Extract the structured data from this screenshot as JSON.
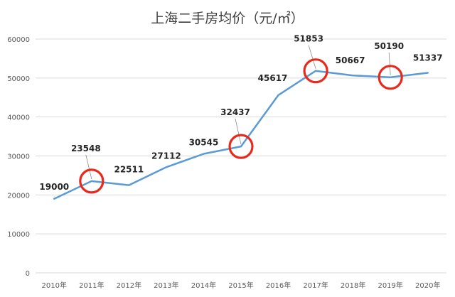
{
  "chart_data": {
    "type": "line",
    "title": "上海二手房均价（元/㎡）",
    "categories": [
      "2010年",
      "2011年",
      "2012年",
      "2013年",
      "2014年",
      "2015年",
      "2016年",
      "2017年",
      "2018年",
      "2019年",
      "2020年"
    ],
    "series": [
      {
        "values": [
          19000,
          23548,
          22511,
          27112,
          30545,
          32437,
          45617,
          51853,
          50667,
          50190,
          51337
        ]
      }
    ],
    "data_labels": [
      "19000",
      "23548",
      "22511",
      "27112",
      "30545",
      "32437",
      "45617",
      "51853",
      "50667",
      "50190",
      "51337"
    ],
    "y_ticks": [
      "0",
      "10000",
      "20000",
      "30000",
      "40000",
      "50000",
      "60000"
    ],
    "ylim": [
      0,
      60000
    ],
    "grid": true,
    "highlighted_categories": [
      "2011年",
      "2015年",
      "2017年",
      "2019年"
    ],
    "colors": {
      "line": "#5b9bd5",
      "highlight": "#e8291c",
      "grid": "#d9d9d9",
      "text": "#595959",
      "label": "#262626"
    }
  }
}
